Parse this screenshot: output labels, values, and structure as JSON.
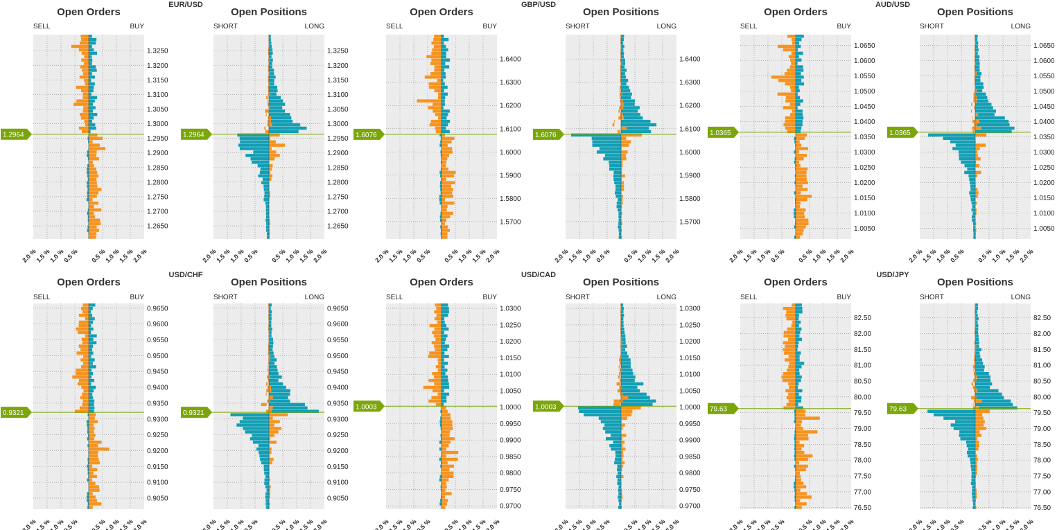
{
  "colors": {
    "sell": "#f7931e",
    "buy": "#129fb5",
    "short": "#129fb5",
    "long": "#f7931e",
    "plot_bg": "#ececec",
    "price_line": "#7aa60a",
    "grid": "#9a9a9a"
  },
  "pairs": [
    {
      "name": "EUR/USD",
      "price": "1.2964",
      "price_value": 1.2964,
      "ymin": 1.2605,
      "ymax": 1.3305,
      "ticks": [
        "1.3250",
        "1.3200",
        "1.3150",
        "1.3100",
        "1.3050",
        "1.3000",
        "1.2950",
        "1.2900",
        "1.2850",
        "1.2800",
        "1.2750",
        "1.2700",
        "1.2650"
      ]
    },
    {
      "name": "GBP/USD",
      "price": "1.6076",
      "price_value": 1.6076,
      "ymin": 1.5625,
      "ymax": 1.6505,
      "ticks": [
        "1.6400",
        "1.6300",
        "1.6200",
        "1.6100",
        "1.6000",
        "1.5900",
        "1.5800",
        "1.5700"
      ]
    },
    {
      "name": "AUD/USD",
      "price": "1.0365",
      "price_value": 1.0365,
      "ymin": 1.0015,
      "ymax": 1.0685,
      "ticks": [
        "1.0650",
        "1.0600",
        "1.0550",
        "1.0500",
        "1.0450",
        "1.0400",
        "1.0350",
        "1.0300",
        "1.0250",
        "1.0200",
        "1.0150",
        "1.0100",
        "1.0050"
      ]
    },
    {
      "name": "USD/CHF",
      "price": "0.9321",
      "price_value": 0.9321,
      "ymin": 0.9015,
      "ymax": 0.9665,
      "ticks": [
        "0.9650",
        "0.9600",
        "0.9550",
        "0.9500",
        "0.9450",
        "0.9400",
        "0.9350",
        "0.9300",
        "0.9250",
        "0.9200",
        "0.9150",
        "0.9100",
        "0.9050"
      ]
    },
    {
      "name": "USD/CAD",
      "price": "1.0003",
      "price_value": 1.0003,
      "ymin": 0.969,
      "ymax": 1.0315,
      "ticks": [
        "1.0300",
        "1.0250",
        "1.0200",
        "1.0150",
        "1.0100",
        "1.0050",
        "1.0000",
        "0.9950",
        "0.9900",
        "0.9850",
        "0.9800",
        "0.9750",
        "0.9700"
      ]
    },
    {
      "name": "USD/JPY",
      "price": "79.63",
      "price_value": 79.63,
      "ymin": 76.45,
      "ymax": 82.95,
      "ticks": [
        "82.50",
        "82.00",
        "81.50",
        "81.00",
        "80.50",
        "80.00",
        "79.50",
        "79.00",
        "78.50",
        "78.00",
        "77.50",
        "77.00",
        "76.50"
      ]
    }
  ],
  "panel_titles": {
    "orders": "Open Orders",
    "positions": "Open Positions"
  },
  "side_labels": {
    "sell": "SELL",
    "buy": "BUY",
    "short": "SHORT",
    "long": "LONG"
  },
  "xticks": [
    "2.0 %",
    "1.5 %",
    "1.0 %",
    "0.5 %",
    "",
    "0.5 %",
    "1.0 %",
    "1.5 %",
    "2.0 %"
  ],
  "chart_data": {
    "type": "bar",
    "note_units": "percent of open orders / open positions per price level",
    "charts": [
      {
        "pair": "EUR/USD",
        "panel": "Open Orders",
        "series": [
          {
            "name": "SELL"
          },
          {
            "name": "BUY"
          }
        ],
        "xlim": [
          -2.0,
          2.0
        ],
        "shape": "orders"
      },
      {
        "pair": "EUR/USD",
        "panel": "Open Positions",
        "series": [
          {
            "name": "SHORT"
          },
          {
            "name": "LONG"
          }
        ],
        "xlim": [
          -2.0,
          2.0
        ],
        "shape": "positions"
      },
      {
        "pair": "GBP/USD",
        "panel": "Open Orders",
        "series": [
          {
            "name": "SELL"
          },
          {
            "name": "BUY"
          }
        ],
        "xlim": [
          -2.0,
          2.0
        ],
        "shape": "orders"
      },
      {
        "pair": "GBP/USD",
        "panel": "Open Positions",
        "series": [
          {
            "name": "SHORT"
          },
          {
            "name": "LONG"
          }
        ],
        "xlim": [
          -2.0,
          2.0
        ],
        "shape": "positions"
      },
      {
        "pair": "AUD/USD",
        "panel": "Open Orders",
        "series": [
          {
            "name": "SELL"
          },
          {
            "name": "BUY"
          }
        ],
        "xlim": [
          -2.0,
          2.0
        ],
        "shape": "orders"
      },
      {
        "pair": "AUD/USD",
        "panel": "Open Positions",
        "series": [
          {
            "name": "SHORT"
          },
          {
            "name": "LONG"
          }
        ],
        "xlim": [
          -2.0,
          2.0
        ],
        "shape": "positions"
      },
      {
        "pair": "USD/CHF",
        "panel": "Open Orders",
        "series": [
          {
            "name": "SELL"
          },
          {
            "name": "BUY"
          }
        ],
        "xlim": [
          -2.0,
          2.0
        ],
        "shape": "orders"
      },
      {
        "pair": "USD/CHF",
        "panel": "Open Positions",
        "series": [
          {
            "name": "SHORT"
          },
          {
            "name": "LONG"
          }
        ],
        "xlim": [
          -2.0,
          2.0
        ],
        "shape": "positions"
      },
      {
        "pair": "USD/CAD",
        "panel": "Open Orders",
        "series": [
          {
            "name": "SELL"
          },
          {
            "name": "BUY"
          }
        ],
        "xlim": [
          -2.0,
          2.0
        ],
        "shape": "orders"
      },
      {
        "pair": "USD/CAD",
        "panel": "Open Positions",
        "series": [
          {
            "name": "SHORT"
          },
          {
            "name": "LONG"
          }
        ],
        "xlim": [
          -2.0,
          2.0
        ],
        "shape": "positions"
      },
      {
        "pair": "USD/JPY",
        "panel": "Open Orders",
        "series": [
          {
            "name": "SELL"
          },
          {
            "name": "BUY"
          }
        ],
        "xlim": [
          -2.0,
          2.0
        ],
        "shape": "orders"
      },
      {
        "pair": "USD/JPY",
        "panel": "Open Positions",
        "series": [
          {
            "name": "SHORT"
          },
          {
            "name": "LONG"
          }
        ],
        "xlim": [
          -2.0,
          2.0
        ],
        "shape": "positions"
      }
    ]
  }
}
